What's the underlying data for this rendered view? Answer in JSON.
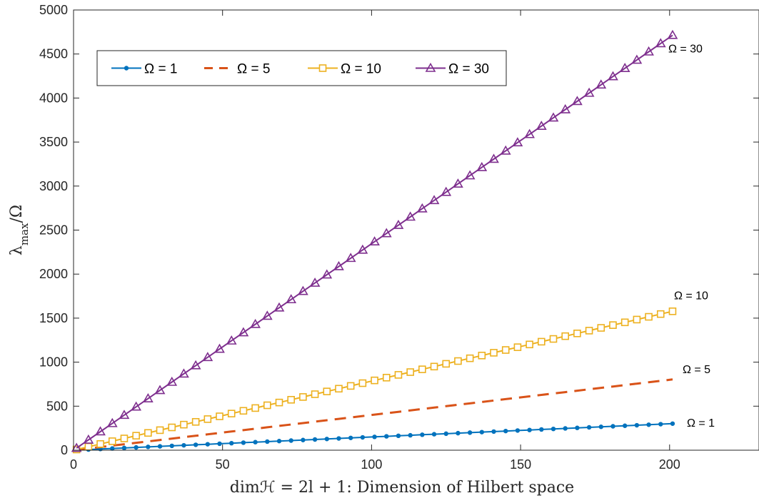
{
  "chart_data": {
    "type": "line",
    "xlabel": "dimℋ = 2l + 1: Dimension of Hilbert space",
    "ylabel": "λmax/Ω",
    "xlim": [
      0,
      230
    ],
    "ylim": [
      0,
      5000
    ],
    "xticks": [
      0,
      50,
      100,
      150,
      200
    ],
    "yticks": [
      0,
      500,
      1000,
      1500,
      2000,
      2500,
      3000,
      3500,
      4000,
      4500,
      5000
    ],
    "grid": false,
    "legend_position": "top-left",
    "x": [
      1,
      5,
      9,
      13,
      17,
      21,
      25,
      29,
      33,
      37,
      41,
      45,
      49,
      53,
      57,
      61,
      65,
      69,
      73,
      77,
      81,
      85,
      89,
      93,
      97,
      101,
      105,
      109,
      113,
      117,
      121,
      125,
      129,
      133,
      137,
      141,
      145,
      149,
      153,
      157,
      161,
      165,
      169,
      173,
      177,
      181,
      185,
      189,
      193,
      197,
      201
    ],
    "series": [
      {
        "name": "Ω = 1",
        "slope": 1.5,
        "marker": "dot",
        "style": "solid",
        "color": "#0072BD",
        "end_label": "Ω = 1"
      },
      {
        "name": "Ω = 5",
        "slope": 4.0,
        "marker": "none",
        "style": "dashed",
        "color": "#D95319",
        "end_label": "Ω = 5"
      },
      {
        "name": "Ω = 10",
        "slope": 7.85,
        "marker": "square",
        "style": "solid",
        "color": "#EDB120",
        "end_label": "Ω = 10"
      },
      {
        "name": "Ω = 30",
        "slope": 23.45,
        "marker": "triangle",
        "style": "solid",
        "color": "#7E2F8E",
        "end_label": "Ω = 30"
      }
    ]
  }
}
